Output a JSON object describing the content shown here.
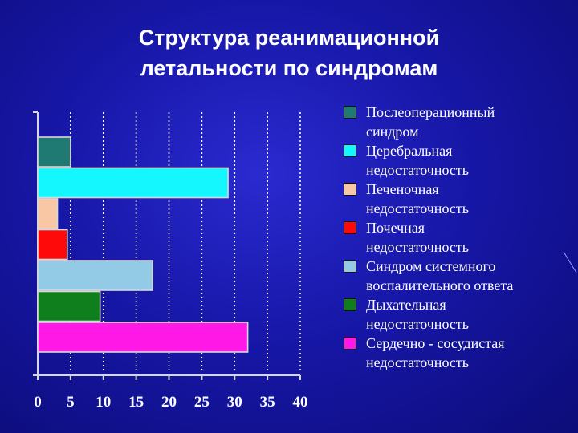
{
  "title_lines": [
    "Структура реанимационной",
    "летальности по синдромам"
  ],
  "chart_data": {
    "type": "bar",
    "orientation": "horizontal",
    "xlim": [
      0,
      40
    ],
    "x_ticks": [
      "0",
      "5",
      "10",
      "15",
      "20",
      "25",
      "30",
      "35",
      "40"
    ],
    "grid": "vertical dotted",
    "legend_position": "right",
    "series": [
      {
        "name": "Послеоперационный\nсиндром",
        "value": 5,
        "color": "#1f7a73"
      },
      {
        "name": "Церебральная\nнедостаточность",
        "value": 29,
        "color": "#14f7ff"
      },
      {
        "name": "Печеночная\nнедостаточность",
        "value": 3,
        "color": "#f9c7a3"
      },
      {
        "name": "Почечная\nнедостаточность",
        "value": 4.5,
        "color": "#ff0a0a"
      },
      {
        "name": "Синдром системного\nвоспалительного ответа",
        "value": 17.5,
        "color": "#93cbe6"
      },
      {
        "name": "Дыхательная\nнедостаточность",
        "value": 9.5,
        "color": "#0f7f1e"
      },
      {
        "name": "Сердечно - сосудистая\nнедостаточность",
        "value": 32,
        "color": "#ff18e6"
      }
    ]
  }
}
